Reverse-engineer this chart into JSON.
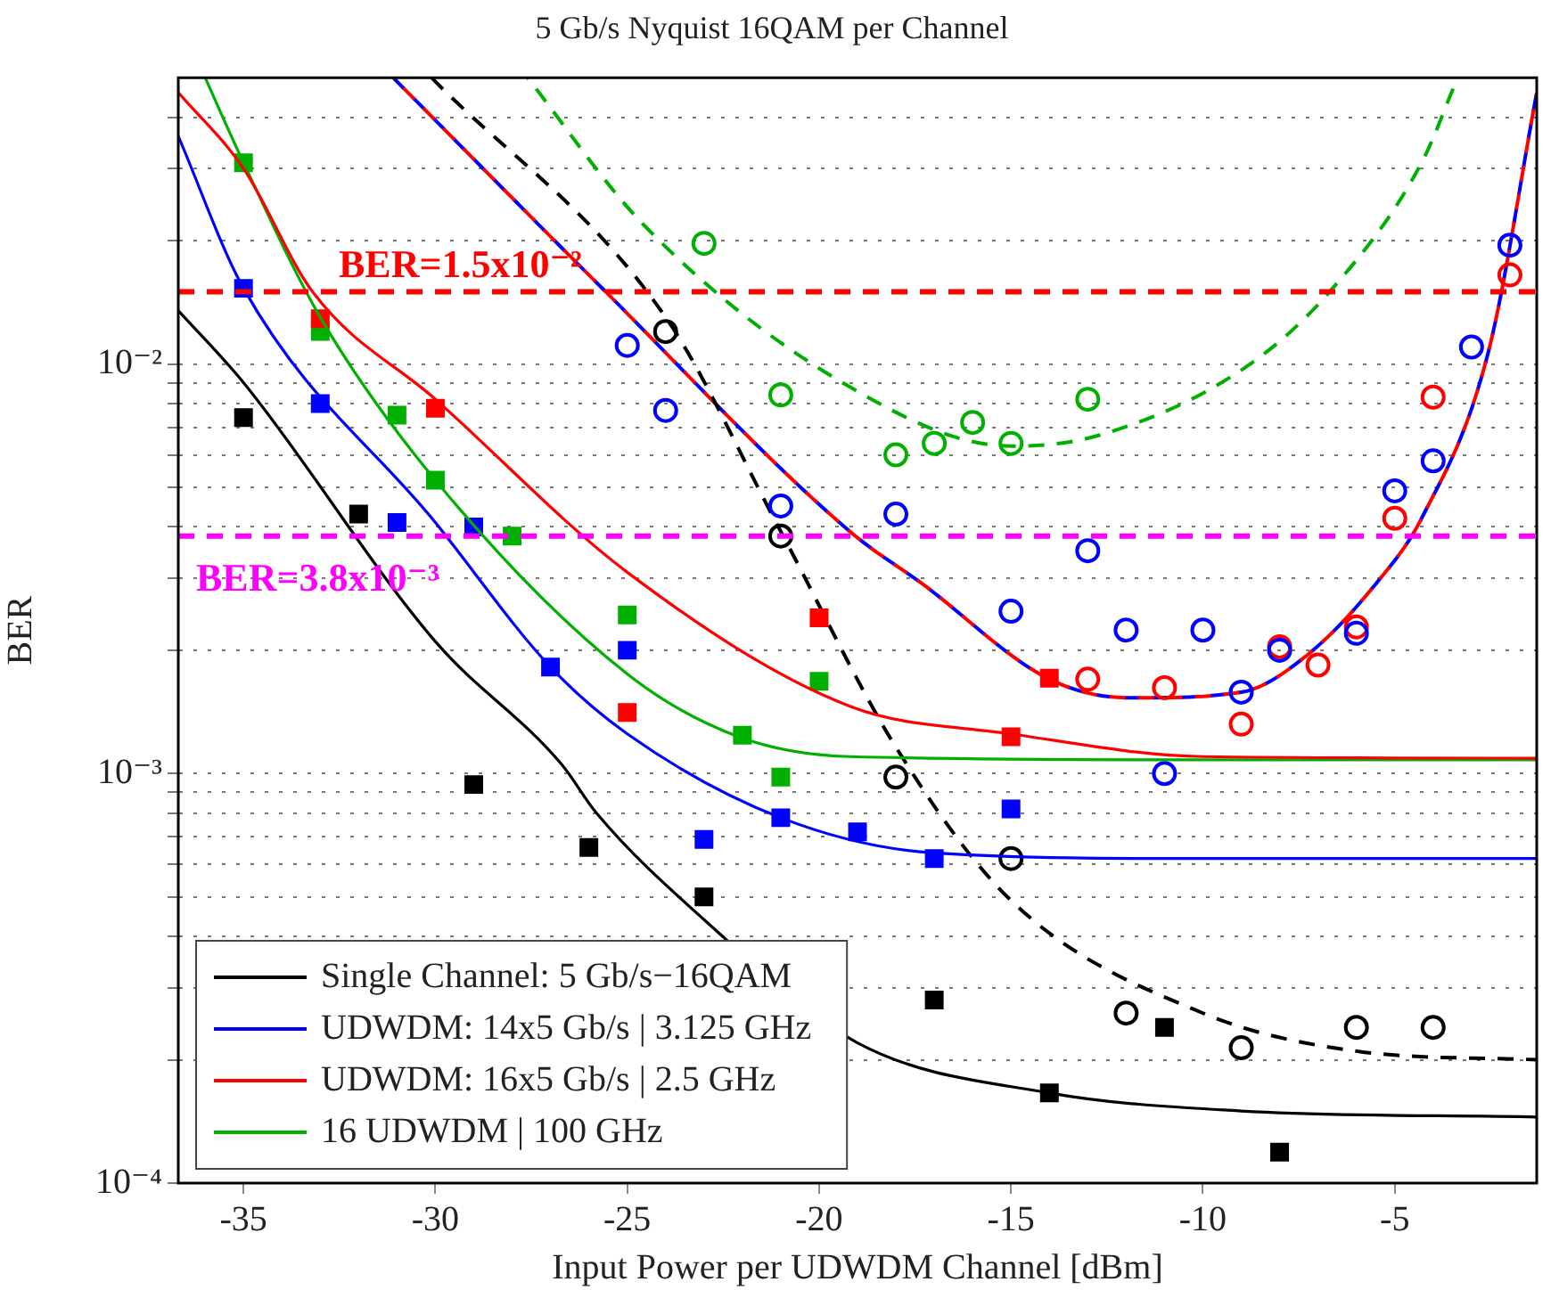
{
  "chart_data": {
    "type": "scatter",
    "title": "5 Gb/s Nyquist 16QAM per Channel",
    "xlabel": "Input Power per UDWDM Channel [dBm]",
    "ylabel": "BER",
    "log": "y",
    "grid": "y",
    "legend": "bottom left",
    "xlim": [
      -36.7,
      -1.3
    ],
    "xticks": [
      -35,
      -30,
      -25,
      -20,
      -15,
      -10,
      -5
    ],
    "ylim": [
      0.0001,
      0.05
    ],
    "yticks": [
      {
        "value": 0.0001,
        "label": "10⁻⁴"
      },
      {
        "value": 0.0002,
        "label": null
      },
      {
        "value": 0.0003,
        "label": null
      },
      {
        "value": 0.0004,
        "label": null
      },
      {
        "value": 0.0005,
        "label": null
      },
      {
        "value": 0.0006,
        "label": null
      },
      {
        "value": 0.0007,
        "label": null
      },
      {
        "value": 0.0008,
        "label": null
      },
      {
        "value": 0.0009,
        "label": null
      },
      {
        "value": 0.001,
        "label": "10⁻³"
      },
      {
        "value": 0.002,
        "label": null
      },
      {
        "value": 0.003,
        "label": null
      },
      {
        "value": 0.004,
        "label": null
      },
      {
        "value": 0.005,
        "label": null
      },
      {
        "value": 0.006,
        "label": null
      },
      {
        "value": 0.007,
        "label": null
      },
      {
        "value": 0.008,
        "label": null
      },
      {
        "value": 0.009,
        "label": null
      },
      {
        "value": 0.01,
        "label": "10⁻²"
      },
      {
        "value": 0.02,
        "label": null
      },
      {
        "value": 0.03,
        "label": null
      },
      {
        "value": 0.04,
        "label": null
      }
    ],
    "ref_lines": [
      {
        "axis": "y",
        "value": 0.015,
        "label": "BER=1.5x10⁻²",
        "color": "#ff0000",
        "line_style": "dashed"
      },
      {
        "axis": "y",
        "value": 0.0038,
        "label": "BER=3.8x10⁻³",
        "color": "#ff00ff",
        "line_style": "dashed"
      }
    ],
    "series": [
      {
        "name": "Single Channel: 5 Gb/s−16QAM",
        "type": "line",
        "marker": "none",
        "line_style": "solid",
        "color": "#000000",
        "x": [
          -36.7,
          -35,
          -30,
          -26.7,
          -25.8,
          -23,
          -19,
          -14,
          -9,
          -1.3
        ],
        "values": [
          0.0135,
          0.009,
          0.0021,
          0.00105,
          0.0008,
          0.00044,
          0.00022,
          0.000166,
          0.00015,
          0.000145
        ]
      },
      {
        "name": "UDWDM: 14x5 Gb/s | 3.125 GHz",
        "type": "line",
        "marker": "none",
        "line_style": "solid",
        "color": "#0000ff",
        "x": [
          -36.7,
          -35,
          -30,
          -27,
          -25,
          -21,
          -17,
          -10,
          -1.3
        ],
        "values": [
          0.036,
          0.0153,
          0.0041,
          0.00182,
          0.00125,
          0.00078,
          0.00064,
          0.00062,
          0.00062
        ]
      },
      {
        "name": "UDWDM: 16x5 Gb/s | 2.5 GHz",
        "type": "line",
        "marker": "none",
        "line_style": "solid",
        "color": "#ff0000",
        "x": [
          -36.7,
          -35,
          -33.2,
          -30,
          -25,
          -19.2,
          -15,
          -10,
          -1.3
        ],
        "values": [
          0.046,
          0.03,
          0.015,
          0.0082,
          0.0031,
          0.00146,
          0.00125,
          0.0011,
          0.00109
        ]
      },
      {
        "name": "16 UDWDM | 100 GHz",
        "type": "line",
        "marker": "none",
        "line_style": "solid",
        "color": "#00b000",
        "x": [
          -36,
          -35,
          -33,
          -30,
          -25,
          -22.1,
          -19.2,
          -10,
          -1.3
        ],
        "values": [
          0.05,
          0.031,
          0.013,
          0.0052,
          0.00175,
          0.00123,
          0.0011,
          0.00108,
          0.00108
        ]
      },
      {
        "marker": "square",
        "color": "#000000",
        "x": [
          -35,
          -32,
          -29,
          -26,
          -23,
          -17,
          -14,
          -11,
          -8
        ],
        "values": [
          0.0074,
          0.0043,
          0.00094,
          0.00066,
          0.0005,
          0.00028,
          0.000166,
          0.00024,
          0.000119
        ]
      },
      {
        "marker": "square",
        "color": "#0000ff",
        "x": [
          -35,
          -33,
          -31,
          -29,
          -27,
          -25,
          -23,
          -21,
          -19,
          -17,
          -15
        ],
        "values": [
          0.0153,
          0.008,
          0.0041,
          0.004,
          0.00182,
          0.002,
          0.00069,
          0.00078,
          0.00072,
          0.00062,
          0.00082
        ]
      },
      {
        "marker": "square",
        "color": "#ff0000",
        "x": [
          -33,
          -30,
          -25,
          -20,
          -15,
          -14
        ],
        "values": [
          0.0129,
          0.0078,
          0.00141,
          0.0024,
          0.00123,
          0.00171
        ]
      },
      {
        "marker": "square",
        "color": "#00b000",
        "x": [
          -35,
          -33,
          -31,
          -30,
          -28,
          -25,
          -22,
          -21,
          -20
        ],
        "values": [
          0.031,
          0.012,
          0.0075,
          0.0052,
          0.0038,
          0.00244,
          0.00124,
          0.00098,
          0.00168
        ]
      },
      {
        "marker": "circle",
        "color": "#000000",
        "x": [
          -24,
          -21,
          -18,
          -15,
          -12,
          -9,
          -6,
          -4
        ],
        "values": [
          0.012,
          0.0038,
          0.00098,
          0.00062,
          0.00026,
          0.000214,
          0.00024,
          0.00024
        ]
      },
      {
        "marker": "circle",
        "color": "#0000ff",
        "x": [
          -25,
          -24,
          -21,
          -18,
          -15,
          -13,
          -12,
          -11,
          -10,
          -9,
          -8,
          -6,
          -5,
          -4,
          -3,
          -2
        ],
        "values": [
          0.0111,
          0.0077,
          0.0045,
          0.0043,
          0.00249,
          0.0035,
          0.00224,
          0.001,
          0.00224,
          0.00158,
          0.002,
          0.0022,
          0.0049,
          0.0058,
          0.011,
          0.0195
        ]
      },
      {
        "marker": "circle",
        "color": "#ff0000",
        "x": [
          -13,
          -11,
          -9,
          -8,
          -7,
          -6,
          -5,
          -4,
          -2
        ],
        "values": [
          0.0017,
          0.00162,
          0.00132,
          0.00204,
          0.00184,
          0.00228,
          0.0042,
          0.0083,
          0.0165
        ]
      },
      {
        "marker": "circle",
        "color": "#00b000",
        "x": [
          -23,
          -21,
          -18,
          -17,
          -16,
          -15,
          -13
        ],
        "values": [
          0.0197,
          0.0084,
          0.006,
          0.0064,
          0.0072,
          0.0064,
          0.0082
        ]
      },
      {
        "type": "line",
        "marker": "none",
        "line_style": "dashed",
        "color": "#000000",
        "x": [
          -30.1,
          -24,
          -21,
          -18,
          -15,
          -10,
          -6,
          -1.3
        ],
        "values": [
          0.05,
          0.013,
          0.0039,
          0.00116,
          0.00049,
          0.00026,
          0.00021,
          0.0002
        ]
      },
      {
        "type": "line",
        "marker": "none",
        "line_style": "dashed",
        "color": "#ff0000",
        "x": [
          -31.1,
          -25.8,
          -19.2,
          -17.3,
          -14,
          -11.9,
          -9,
          -7.3,
          -5.5,
          -4.3,
          -2.55,
          -1.3
        ],
        "values": [
          0.05,
          0.0158,
          0.0039,
          0.0029,
          0.0017,
          0.00153,
          0.00158,
          0.00194,
          0.0029,
          0.0042,
          0.0108,
          0.046
        ]
      },
      {
        "type": "line",
        "marker": "none",
        "line_style": "dashed",
        "color": "#0000ff",
        "x": [
          -31.1,
          -25.8,
          -19.2,
          -17.3,
          -14,
          -11.9,
          -9,
          -7.3,
          -5.5,
          -4.3,
          -2.55,
          -1.3
        ],
        "values": [
          0.05,
          0.0158,
          0.0039,
          0.0029,
          0.0017,
          0.00153,
          0.00158,
          0.00194,
          0.0029,
          0.0042,
          0.0108,
          0.046
        ]
      },
      {
        "type": "line",
        "marker": "none",
        "line_style": "dashed",
        "color": "#00b000",
        "x": [
          -27.6,
          -24.6,
          -19.3,
          -15,
          -12.7,
          -8.9,
          -6.7,
          -4.3,
          -3.4
        ],
        "values": [
          0.05,
          0.022,
          0.0089,
          0.0063,
          0.0067,
          0.0098,
          0.015,
          0.031,
          0.049
        ]
      }
    ]
  }
}
